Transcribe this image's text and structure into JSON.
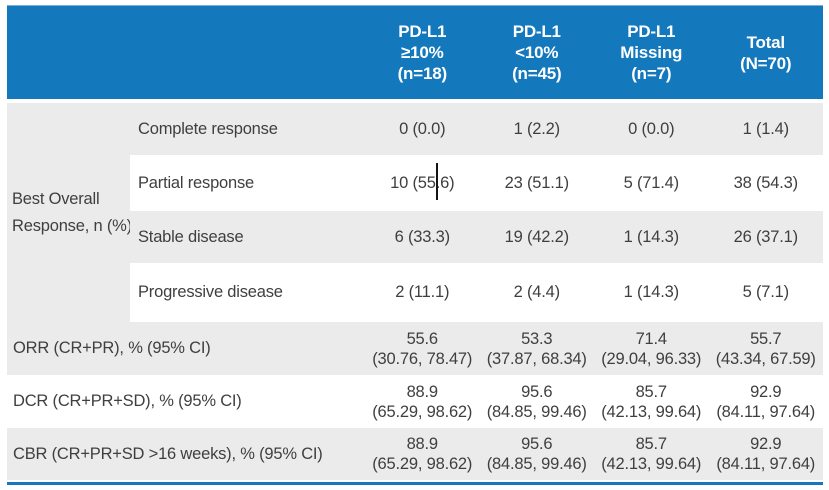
{
  "colors": {
    "header_blue": "#1478bd",
    "row_gray": "#ebebeb",
    "body_text": "#3f3f3f",
    "header_text": "#ffffff"
  },
  "chart_data": {
    "type": "table",
    "title": "Best overall response by PD-L1 status",
    "columns": [
      "PD-L1 ≥10% (n=18)",
      "PD-L1 <10% (n=45)",
      "PD-L1 Missing (n=7)",
      "Total (N=70)"
    ],
    "rows": [
      {
        "label": "Complete response",
        "values": [
          "0 (0.0)",
          "1 (2.2)",
          "0 (0.0)",
          "1 (1.4)"
        ]
      },
      {
        "label": "Partial response",
        "values": [
          "10 (55.6)",
          "23 (51.1)",
          "5 (71.4)",
          "38 (54.3)"
        ]
      },
      {
        "label": "Stable disease",
        "values": [
          "6 (33.3)",
          "19 (42.2)",
          "1 (14.3)",
          "26 (37.1)"
        ]
      },
      {
        "label": "Progressive disease",
        "values": [
          "2 (11.1)",
          "2 (4.4)",
          "1 (14.3)",
          "5 (7.1)"
        ]
      },
      {
        "label": "ORR (CR+PR), % (95% CI)",
        "values": [
          "55.6 (30.76, 78.47)",
          "53.3 (37.87, 68.34)",
          "71.4 (29.04, 96.33)",
          "55.7 (43.34, 67.59)"
        ]
      },
      {
        "label": "DCR (CR+PR+SD), % (95% CI)",
        "values": [
          "88.9 (65.29, 98.62)",
          "95.6 (84.85, 99.46)",
          "85.7 (42.13, 99.64)",
          "92.9 (84.11, 97.64)"
        ]
      },
      {
        "label": "CBR (CR+PR+SD >16 weeks), % (95% CI)",
        "values": [
          "88.9 (65.29, 98.62)",
          "95.6 (84.85, 99.46)",
          "85.7 (42.13, 99.64)",
          "92.9 (84.11, 97.64)"
        ]
      }
    ]
  },
  "table": {
    "columns": [
      {
        "lines": [
          "PD-L1",
          "≥10%",
          "(n=18)"
        ]
      },
      {
        "lines": [
          "PD-L1",
          "<10%",
          "(n=45)"
        ]
      },
      {
        "lines": [
          "PD-L1",
          "Missing",
          "(n=7)"
        ]
      },
      {
        "lines": [
          "Total",
          "(N=70)"
        ]
      }
    ],
    "group_label_lines": [
      "Best Overall",
      "Response, n (%)"
    ],
    "response_rows": [
      {
        "label": "Complete response",
        "values": [
          "0 (0.0)",
          "1 (2.2)",
          "0 (0.0)",
          "1 (1.4)"
        ]
      },
      {
        "label": "Partial response",
        "values": [
          "10 (55.6)",
          "23 (51.1)",
          "5 (71.4)",
          "38 (54.3)"
        ]
      },
      {
        "label": "Stable disease",
        "values": [
          "6 (33.3)",
          "19 (42.2)",
          "1 (14.3)",
          "26 (37.1)"
        ]
      },
      {
        "label": "Progressive disease",
        "values": [
          "2 (11.1)",
          "2 (4.4)",
          "1 (14.3)",
          "5 (7.1)"
        ]
      }
    ],
    "summary_rows": [
      {
        "label": "ORR (CR+PR), % (95% CI)",
        "values": [
          [
            "55.6",
            "(30.76, 78.47)"
          ],
          [
            "53.3",
            "(37.87, 68.34)"
          ],
          [
            "71.4",
            "(29.04, 96.33)"
          ],
          [
            "55.7",
            "(43.34, 67.59)"
          ]
        ]
      },
      {
        "label": "DCR (CR+PR+SD), % (95% CI)",
        "values": [
          [
            "88.9",
            "(65.29, 98.62)"
          ],
          [
            "95.6",
            "(84.85, 99.46)"
          ],
          [
            "85.7",
            "(42.13, 99.64)"
          ],
          [
            "92.9",
            "(84.11, 97.64)"
          ]
        ]
      },
      {
        "label": "CBR (CR+PR+SD >16 weeks), % (95% CI)",
        "values": [
          [
            "88.9",
            "(65.29, 98.62)"
          ],
          [
            "95.6",
            "(84.85, 99.46)"
          ],
          [
            "85.7",
            "(42.13, 99.64)"
          ],
          [
            "92.9",
            "(84.11, 97.64)"
          ]
        ]
      }
    ]
  }
}
